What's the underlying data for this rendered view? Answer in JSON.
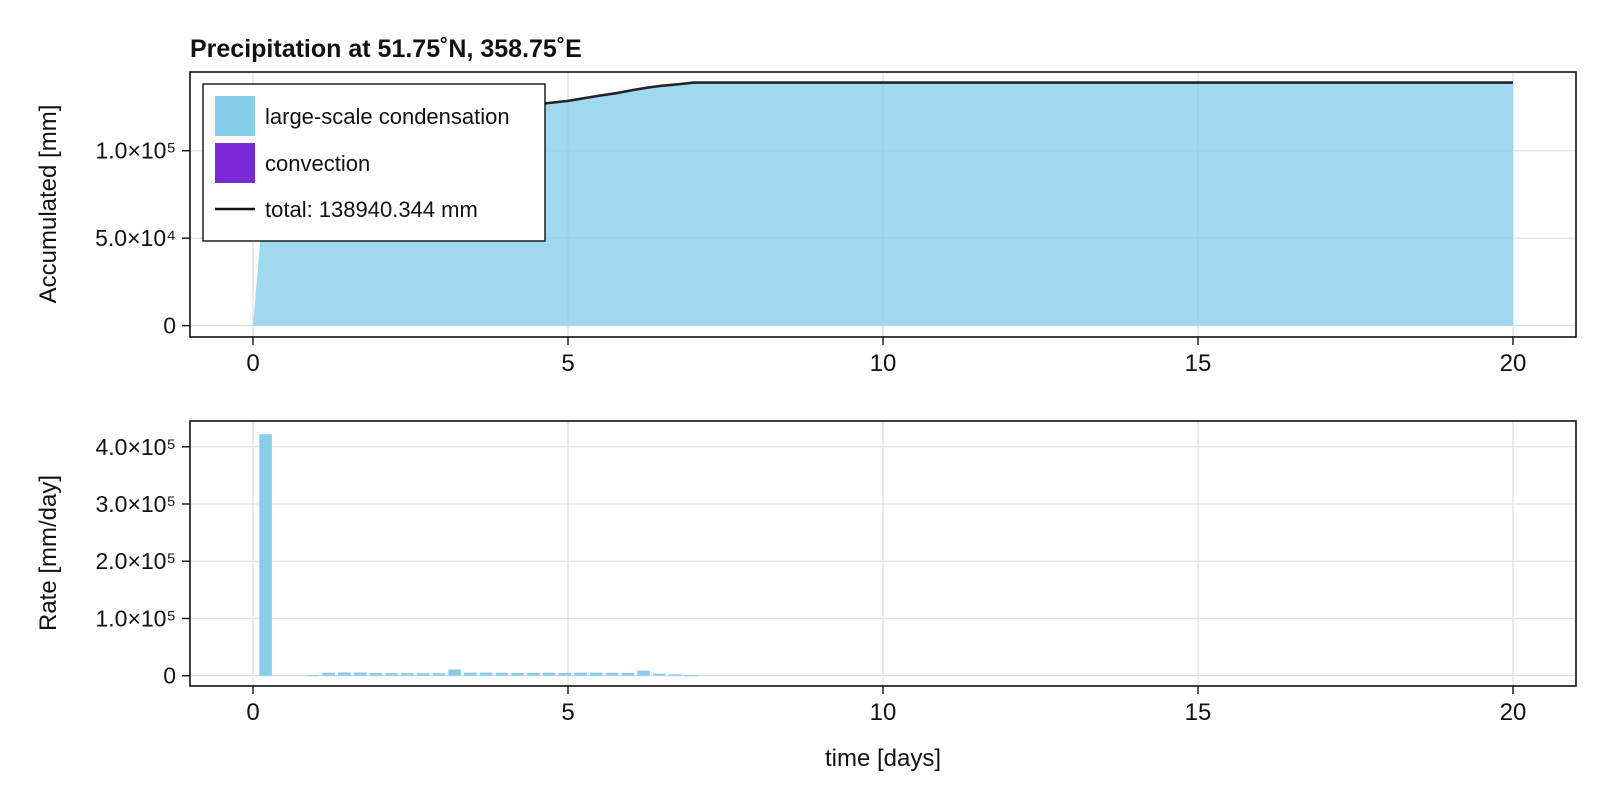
{
  "figure": {
    "title": "Precipitation at 51.75˚N, 358.75˚E",
    "xlabel": "time [days]"
  },
  "colors": {
    "large_scale": "#87ceeb",
    "convection": "#7b2ad6",
    "total_line": "#222222",
    "grid": "#e0e0e0",
    "frame": "#111111"
  },
  "chart_data": [
    {
      "type": "area",
      "title": "Precipitation at 51.75˚N, 358.75˚E",
      "xlabel": "",
      "ylabel": "Accumulated [mm]",
      "xlim": [
        -1,
        21
      ],
      "ylim": [
        -6500,
        145000
      ],
      "xticks": [
        0,
        5,
        10,
        15,
        20
      ],
      "yticks": [
        {
          "value": 0,
          "label": "0"
        },
        {
          "value": 50000,
          "label": "5.0×10⁴"
        },
        {
          "value": 100000,
          "label": "1.0×10⁵"
        }
      ],
      "grid": true,
      "legend_position": "top-left",
      "legend": [
        {
          "kind": "patch",
          "label": "large-scale condensation",
          "color": "#87ceeb"
        },
        {
          "kind": "patch",
          "label": "convection",
          "color": "#7b2ad6"
        },
        {
          "kind": "line",
          "label": "total: 138940.344 mm",
          "color": "#111111"
        }
      ],
      "series": [
        {
          "name": "large-scale condensation",
          "x": [
            0,
            0.25,
            0.5,
            1.0,
            1.5,
            2.0,
            2.5,
            3.0,
            3.5,
            4.0,
            4.5,
            5.0,
            5.25,
            5.5,
            5.75,
            6.0,
            6.25,
            6.5,
            6.75,
            7.0,
            7.5,
            10.0,
            15.0,
            20.0
          ],
          "values": [
            0,
            105500,
            110000,
            113500,
            116000,
            118000,
            119500,
            121500,
            123500,
            125000,
            126500,
            128500,
            130000,
            131500,
            132800,
            134500,
            136000,
            137200,
            138000,
            138940,
            138940,
            138940,
            138940,
            138940
          ]
        },
        {
          "name": "convection",
          "x": [
            0,
            20
          ],
          "values": [
            0,
            0
          ]
        }
      ]
    },
    {
      "type": "bar",
      "xlabel": "time [days]",
      "ylabel": "Rate [mm/day]",
      "xlim": [
        -1,
        21
      ],
      "ylim": [
        -18000,
        445000
      ],
      "xticks": [
        0,
        5,
        10,
        15,
        20
      ],
      "yticks": [
        {
          "value": 0,
          "label": "0"
        },
        {
          "value": 100000,
          "label": "1.0×10⁵"
        },
        {
          "value": 200000,
          "label": "2.0×10⁵"
        },
        {
          "value": 300000,
          "label": "3.0×10⁵"
        },
        {
          "value": 400000,
          "label": "4.0×10⁵"
        }
      ],
      "grid": true,
      "bar_width": 0.2,
      "series": [
        {
          "name": "large-scale condensation",
          "x": [
            0.2,
            0.95,
            1.2,
            1.45,
            1.7,
            1.95,
            2.2,
            2.45,
            2.7,
            2.95,
            3.2,
            3.45,
            3.7,
            3.95,
            4.2,
            4.45,
            4.7,
            4.95,
            5.2,
            5.45,
            5.7,
            5.95,
            6.2,
            6.45,
            6.7,
            6.95
          ],
          "values": [
            422000,
            1000,
            5200,
            5800,
            5600,
            4800,
            4600,
            4400,
            4300,
            4300,
            11000,
            5400,
            5500,
            5200,
            4800,
            5100,
            5300,
            4900,
            5300,
            5400,
            5100,
            5000,
            8800,
            3500,
            2500,
            1200
          ]
        }
      ]
    }
  ]
}
